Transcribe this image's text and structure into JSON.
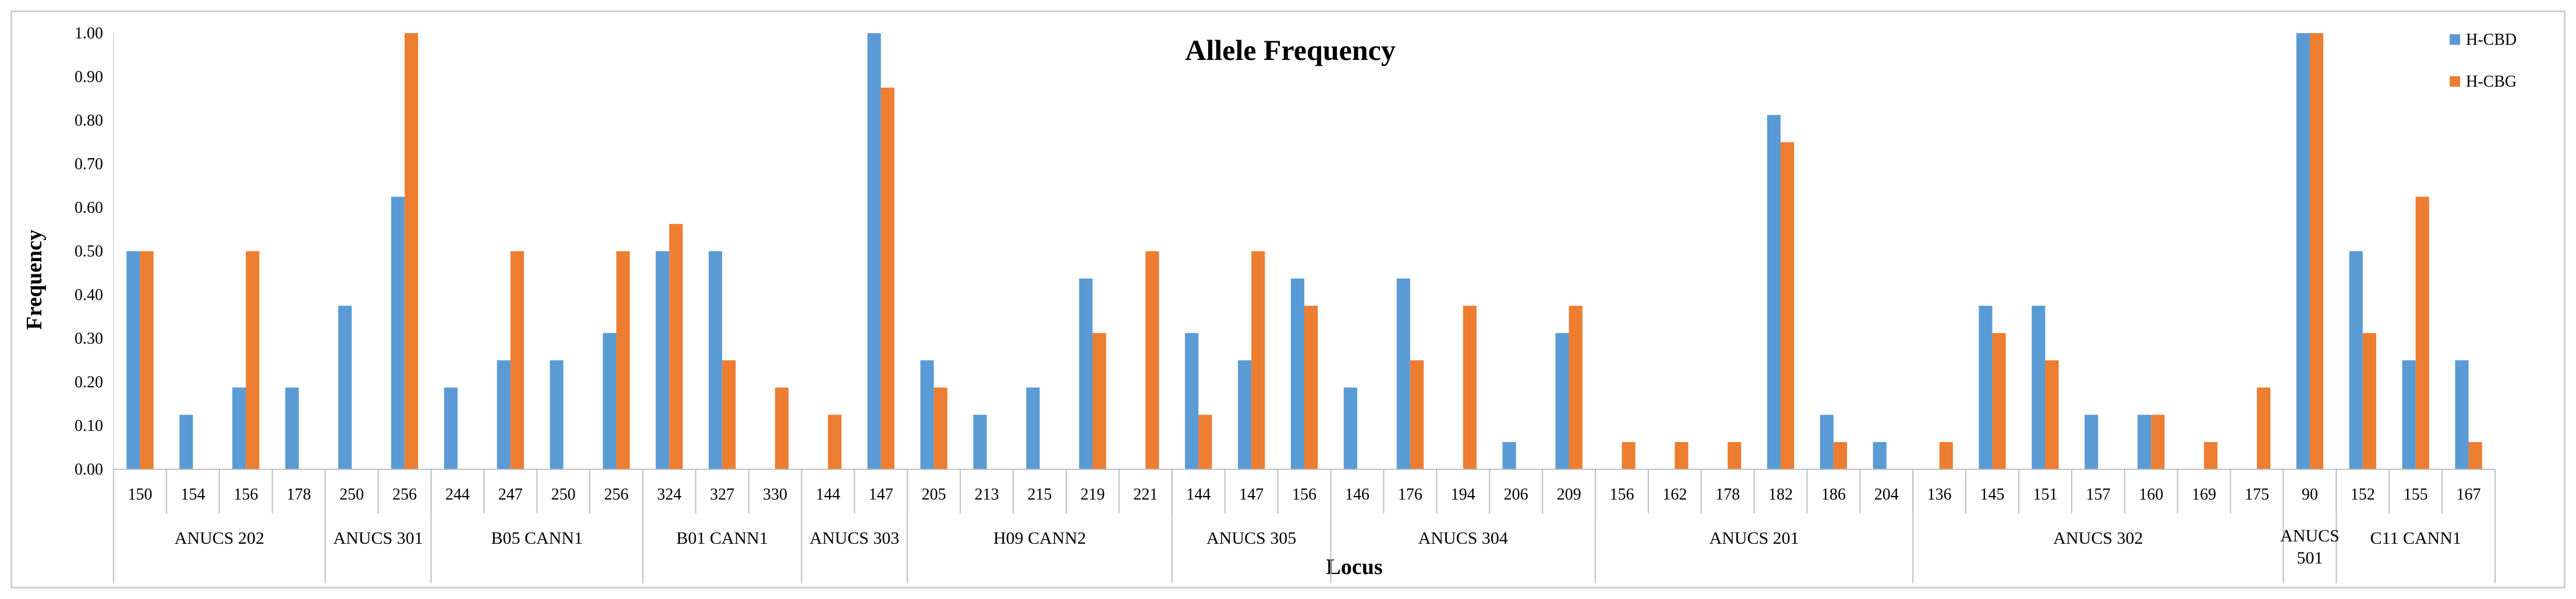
{
  "chart_data": {
    "type": "bar",
    "title": "Allele Frequency",
    "xlabel": "Locus",
    "ylabel": "Frequency",
    "ylim": [
      0,
      1
    ],
    "yticks": [
      "0.00",
      "0.10",
      "0.20",
      "0.30",
      "0.40",
      "0.50",
      "0.60",
      "0.70",
      "0.80",
      "0.90",
      "1.00"
    ],
    "legend_position": "top-right",
    "colors": {
      "H-CBD": "#5B9BD5",
      "H-CBG": "#ED7D31"
    },
    "categories": [
      "150",
      "154",
      "156",
      "178",
      "250",
      "256",
      "244",
      "247",
      "250",
      "256",
      "324",
      "327",
      "330",
      "144",
      "147",
      "205",
      "213",
      "215",
      "219",
      "221",
      "144",
      "147",
      "156",
      "146",
      "176",
      "194",
      "206",
      "209",
      "156",
      "162",
      "178",
      "182",
      "186",
      "204",
      "136",
      "145",
      "151",
      "157",
      "160",
      "169",
      "175",
      "90",
      "152",
      "155",
      "167"
    ],
    "groups": [
      {
        "label": "ANUCS 202",
        "size": 4
      },
      {
        "label": "ANUCS 301",
        "size": 2
      },
      {
        "label": "B05 CANN1",
        "size": 4
      },
      {
        "label": "B01 CANN1",
        "size": 3
      },
      {
        "label": "ANUCS 303",
        "size": 2
      },
      {
        "label": "H09 CANN2",
        "size": 5
      },
      {
        "label": "ANUCS 305",
        "size": 3
      },
      {
        "label": "ANUCS 304",
        "size": 5
      },
      {
        "label": "ANUCS 201",
        "size": 6
      },
      {
        "label": "ANUCS 302",
        "size": 7
      },
      {
        "label": "ANUCS 501",
        "size": 1
      },
      {
        "label": "C11 CANN1",
        "size": 3
      }
    ],
    "series": [
      {
        "name": "H-CBD",
        "values": [
          0.5,
          0.125,
          0.1875,
          0.1875,
          0.375,
          0.625,
          0.1875,
          0.25,
          0.25,
          0.3125,
          0.5,
          0.5,
          0,
          0,
          1.0,
          0.25,
          0.125,
          0.1875,
          0.4375,
          0,
          0.3125,
          0.25,
          0.4375,
          0.1875,
          0.4375,
          0,
          0.0625,
          0.3125,
          0,
          0,
          0,
          0.8125,
          0.125,
          0.0625,
          0,
          0.375,
          0.375,
          0.125,
          0.125,
          0,
          0,
          1.0,
          0.5,
          0.25,
          0.25
        ]
      },
      {
        "name": "H-CBG",
        "values": [
          0.5,
          0,
          0.5,
          0,
          0,
          1.0,
          0,
          0.5,
          0,
          0.5,
          0.5625,
          0.25,
          0.1875,
          0.125,
          0.875,
          0.1875,
          0,
          0,
          0.3125,
          0.5,
          0.125,
          0.5,
          0.375,
          0,
          0.25,
          0.375,
          0,
          0.375,
          0.0625,
          0.0625,
          0.0625,
          0.75,
          0.0625,
          0,
          0.0625,
          0.3125,
          0.25,
          0,
          0.125,
          0.0625,
          0.1875,
          1.0,
          0.3125,
          0.625,
          0.0625
        ]
      }
    ]
  }
}
